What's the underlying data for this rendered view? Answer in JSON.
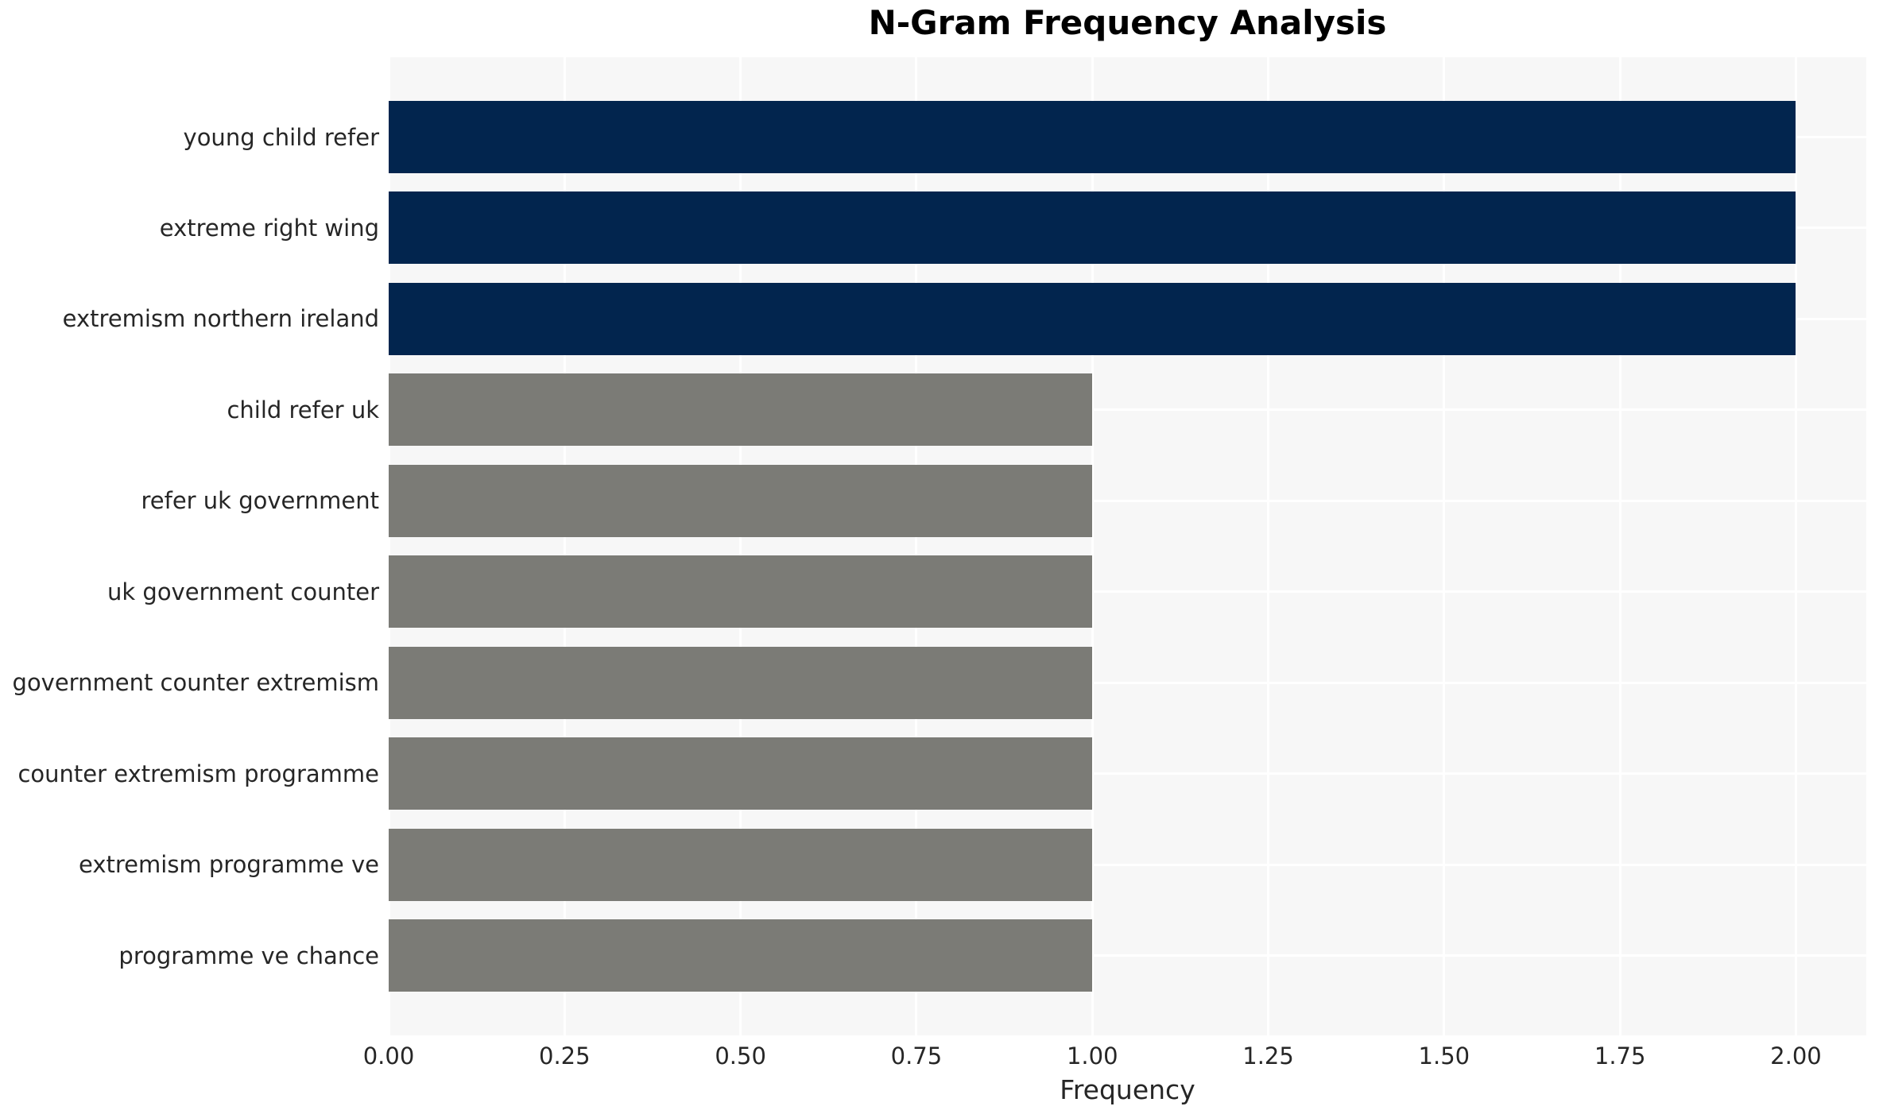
{
  "chart_data": {
    "type": "bar",
    "orientation": "horizontal",
    "title": "N-Gram Frequency Analysis",
    "xlabel": "Frequency",
    "ylabel": "",
    "categories": [
      "young child refer",
      "extreme right wing",
      "extremism northern ireland",
      "child refer uk",
      "refer uk government",
      "uk government counter",
      "government counter extremism",
      "counter extremism programme",
      "extremism programme ve",
      "programme ve chance"
    ],
    "values": [
      2.0,
      2.0,
      2.0,
      1.0,
      1.0,
      1.0,
      1.0,
      1.0,
      1.0,
      1.0
    ],
    "bar_colors": [
      "#02254e",
      "#02254e",
      "#02254e",
      "#7b7b76",
      "#7b7b76",
      "#7b7b76",
      "#7b7b76",
      "#7b7b76",
      "#7b7b76",
      "#7b7b76"
    ],
    "xlim": [
      0,
      2.1
    ],
    "xticks": [
      0,
      0.25,
      0.5,
      0.75,
      1.0,
      1.25,
      1.5,
      1.75,
      2.0
    ],
    "xtick_labels": [
      "0.00",
      "0.25",
      "0.50",
      "0.75",
      "1.00",
      "1.25",
      "1.50",
      "1.75",
      "2.00"
    ],
    "grid": true,
    "grid_color": "#ffffff",
    "legend": false,
    "plot_background": "#f7f7f7",
    "figure_background": "#ffffff",
    "text_color": "#262626",
    "title_color": "#000000",
    "series_meaning": {
      "navy": "frequency 2 n-grams",
      "gray": "frequency 1 n-grams"
    }
  }
}
